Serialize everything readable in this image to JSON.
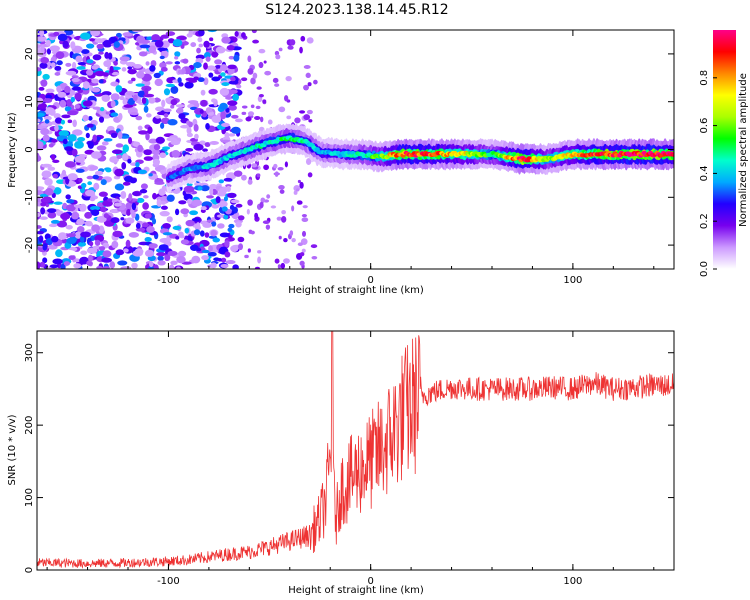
{
  "title": "S124.2023.138.14.45.R12",
  "chart_data": [
    {
      "type": "heatmap",
      "xlabel": "Height of straight line (km)",
      "ylabel": "Frequency (Hz)",
      "xlim": [
        -165,
        150
      ],
      "ylim": [
        -25,
        25
      ],
      "x_ticks": [
        -100,
        0,
        100
      ],
      "y_ticks": [
        -20,
        -10,
        0,
        10,
        20
      ],
      "colorbar": {
        "label": "Normalized spectral amplitude",
        "range": [
          0,
          1
        ],
        "ticks": [
          "0.0",
          "0.2",
          "0.4",
          "0.6",
          "0.8"
        ],
        "colors": [
          "#ffffff",
          "#cc99ff",
          "#7700ee",
          "#2200ff",
          "#00aaff",
          "#00ffcc",
          "#00ff00",
          "#aaff00",
          "#ffff00",
          "#ff8800",
          "#ff0000",
          "#ff0088"
        ]
      },
      "ridge": [
        {
          "x": -100,
          "freq": -6,
          "amp": 0.3
        },
        {
          "x": -90,
          "freq": -4,
          "amp": 0.35
        },
        {
          "x": -80,
          "freq": -3.5,
          "amp": 0.4
        },
        {
          "x": -70,
          "freq": -1.5,
          "amp": 0.4
        },
        {
          "x": -60,
          "freq": 0,
          "amp": 0.45
        },
        {
          "x": -50,
          "freq": 1.5,
          "amp": 0.45
        },
        {
          "x": -40,
          "freq": 2.5,
          "amp": 0.5
        },
        {
          "x": -32,
          "freq": 1.5,
          "amp": 0.45
        },
        {
          "x": -25,
          "freq": -0.5,
          "amp": 0.4
        },
        {
          "x": -15,
          "freq": -1,
          "amp": 0.4
        },
        {
          "x": -5,
          "freq": -1,
          "amp": 0.45
        },
        {
          "x": 5,
          "freq": -1.5,
          "amp": 0.6
        },
        {
          "x": 15,
          "freq": -1,
          "amp": 0.9
        },
        {
          "x": 30,
          "freq": -1,
          "amp": 0.85
        },
        {
          "x": 45,
          "freq": -1,
          "amp": 0.75
        },
        {
          "x": 60,
          "freq": -1,
          "amp": 0.5
        },
        {
          "x": 75,
          "freq": -2,
          "amp": 0.95
        },
        {
          "x": 88,
          "freq": -2,
          "amp": 0.6
        },
        {
          "x": 100,
          "freq": -1,
          "amp": 0.75
        },
        {
          "x": 115,
          "freq": -1,
          "amp": 0.9
        },
        {
          "x": 130,
          "freq": -1,
          "amp": 0.95
        },
        {
          "x": 150,
          "freq": -1,
          "amp": 0.95
        }
      ]
    },
    {
      "type": "line",
      "xlabel": "Height of straight line (km)",
      "ylabel": "SNR (10 * v/v)",
      "xlim": [
        -165,
        150
      ],
      "ylim": [
        0,
        330
      ],
      "x_ticks": [
        -100,
        0,
        100
      ],
      "y_ticks": [
        0,
        100,
        200,
        300
      ],
      "color": "#ee3333",
      "series": [
        {
          "x": [
            -165,
            -140,
            -120,
            -100,
            -90,
            -80,
            -70,
            -60,
            -50,
            -40,
            -30,
            -25,
            -22,
            -20,
            -17,
            -15,
            -10,
            -5,
            0,
            5,
            10,
            15,
            20,
            25,
            30,
            40,
            50,
            60,
            70,
            80,
            90,
            100,
            110,
            120,
            130,
            140,
            150
          ],
          "values": [
            10,
            9,
            10,
            12,
            14,
            18,
            22,
            25,
            32,
            40,
            48,
            70,
            100,
            150,
            70,
            110,
            125,
            140,
            150,
            165,
            185,
            210,
            225,
            240,
            245,
            252,
            250,
            250,
            250,
            250,
            252,
            250,
            258,
            250,
            252,
            255,
            255
          ]
        }
      ]
    }
  ]
}
